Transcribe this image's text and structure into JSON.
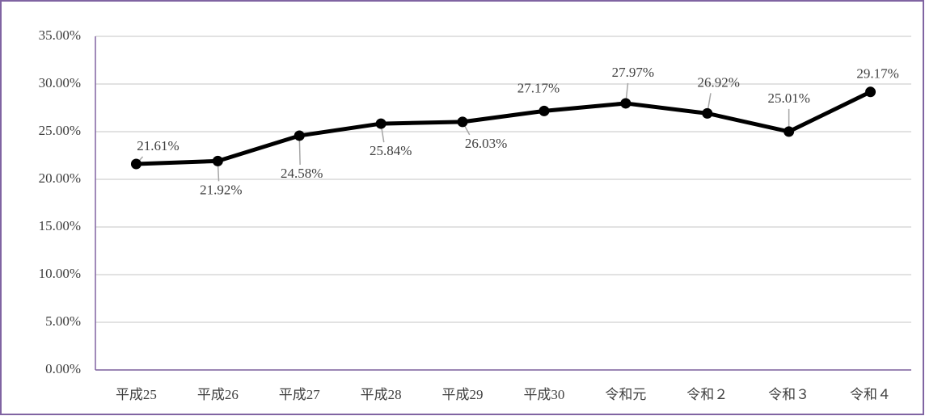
{
  "chart_data": {
    "type": "line",
    "categories": [
      "平成25",
      "平成26",
      "平成27",
      "平成28",
      "平成29",
      "平成30",
      "令和元",
      "令和２",
      "令和３",
      "令和４"
    ],
    "values": [
      21.61,
      21.92,
      24.58,
      25.84,
      26.03,
      27.17,
      27.97,
      26.92,
      25.01,
      29.17
    ],
    "value_labels": [
      "21.61%",
      "21.92%",
      "24.58%",
      "25.84%",
      "26.03%",
      "27.17%",
      "27.97%",
      "26.92%",
      "25.01%",
      "29.17%"
    ],
    "color": "#000000",
    "ylim": [
      0,
      35
    ],
    "yticks": [
      {
        "value": 0,
        "label": "0.00%"
      },
      {
        "value": 5,
        "label": "5.00%"
      },
      {
        "value": 10,
        "label": "10.00%"
      },
      {
        "value": 15,
        "label": "15.00%"
      },
      {
        "value": 20,
        "label": "20.00%"
      },
      {
        "value": 25,
        "label": "25.00%"
      },
      {
        "value": 30,
        "label": "30.00%"
      },
      {
        "value": 35,
        "label": "35.00%"
      }
    ],
    "grid": true
  }
}
